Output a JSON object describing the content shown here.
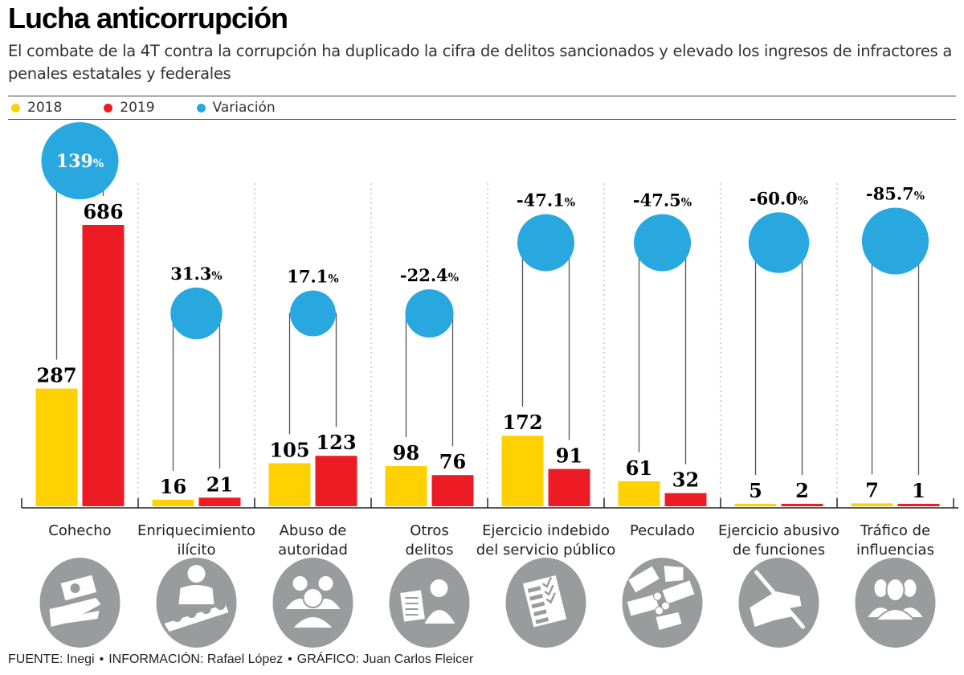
{
  "header": {
    "title": "Lucha anticorrupción",
    "subtitle": "El combate de la 4T contra la corrupción ha duplicado la cifra de delitos sancionados y elevado los ingresos de infractores a penales estatales y federales"
  },
  "legend": [
    {
      "label": "2018",
      "color": "#FFD100"
    },
    {
      "label": "2019",
      "color": "#ED1C24"
    },
    {
      "label": "Variación",
      "color": "#29A8E0"
    }
  ],
  "footer": {
    "source": "FUENTE: Inegi",
    "info": "INFORMACIÓN: Rafael López",
    "graphic": "GRÁFICO: Juan Carlos Fleicer",
    "separator": "•"
  },
  "chart_data": {
    "type": "bar",
    "title": "Lucha anticorrupción",
    "xlabel": "",
    "ylabel": "",
    "ylim": [
      0,
      686
    ],
    "grid": false,
    "legend_position": "top-left",
    "categories": [
      {
        "label_lines": [
          "Cohecho"
        ],
        "icon": "hand-receiving-money-icon"
      },
      {
        "label_lines": [
          "Enriquecimiento",
          "ilícito"
        ],
        "icon": "businessman-with-money-icon"
      },
      {
        "label_lines": [
          "Abuso de",
          "autoridad"
        ],
        "icon": "group-of-people-icon"
      },
      {
        "label_lines": [
          "Otros",
          "delitos"
        ],
        "icon": "person-with-clipboard-icon"
      },
      {
        "label_lines": [
          "Ejercicio indebido",
          "del servicio público"
        ],
        "icon": "checklist-document-icon"
      },
      {
        "label_lines": [
          "Peculado"
        ],
        "icon": "hands-exchanging-money-icon"
      },
      {
        "label_lines": [
          "Ejercicio abusivo",
          "de funciones"
        ],
        "icon": "hand-holding-pen-icon"
      },
      {
        "label_lines": [
          "Tráfico de",
          "influencias"
        ],
        "icon": "people-silhouettes-icon"
      }
    ],
    "series": [
      {
        "name": "2018",
        "color": "#FFD100",
        "values": [
          287,
          16,
          105,
          98,
          172,
          61,
          5,
          7
        ]
      },
      {
        "name": "2019",
        "color": "#ED1C24",
        "values": [
          686,
          21,
          123,
          76,
          91,
          32,
          2,
          1
        ]
      }
    ],
    "variation": {
      "name": "Variación",
      "color": "#29A8E0",
      "values": [
        139,
        31.3,
        17.1,
        -22.4,
        -47.1,
        -47.5,
        -60.0,
        -85.7
      ],
      "labels": [
        "139",
        "31.3",
        "17.1",
        "-22.4",
        "-47.1",
        "-47.5",
        "-60.0",
        "-85.7"
      ],
      "suffix": "%"
    }
  }
}
